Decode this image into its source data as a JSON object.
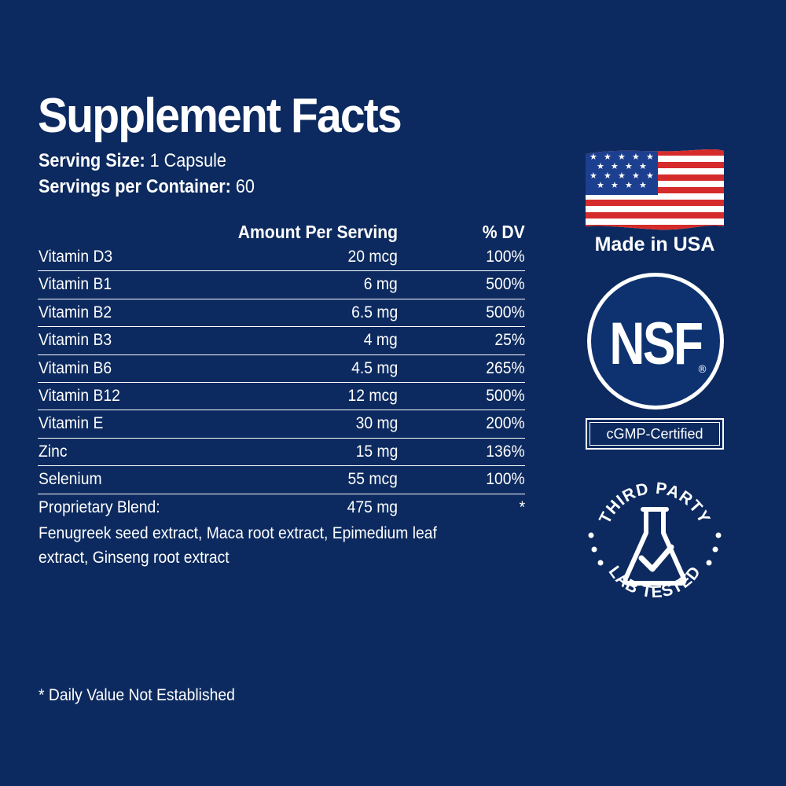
{
  "title": "Supplement Facts",
  "serving": {
    "size_label": "Serving Size:",
    "size_value": " 1 Capsule",
    "count_label": "Servings per Container:",
    "count_value": " 60"
  },
  "table": {
    "headers": {
      "amount": "Amount Per Serving",
      "dv": "% DV"
    },
    "rows": [
      {
        "name": "Vitamin D3",
        "amount": "20 mcg",
        "dv": "100%"
      },
      {
        "name": "Vitamin B1",
        "amount": "6 mg",
        "dv": "500%"
      },
      {
        "name": "Vitamin B2",
        "amount": "6.5 mg",
        "dv": "500%"
      },
      {
        "name": "Vitamin B3",
        "amount": "4 mg",
        "dv": "25%"
      },
      {
        "name": "Vitamin B6",
        "amount": "4.5 mg",
        "dv": "265%"
      },
      {
        "name": "Vitamin B12",
        "amount": "12 mcg",
        "dv": "500%"
      },
      {
        "name": "Vitamin E",
        "amount": "30 mg",
        "dv": "200%"
      },
      {
        "name": "Zinc",
        "amount": "15 mg",
        "dv": "136%"
      },
      {
        "name": "Selenium",
        "amount": "55 mcg",
        "dv": "100%"
      },
      {
        "name": "Proprietary Blend:",
        "amount": "475 mg",
        "dv": "*"
      }
    ]
  },
  "blend_ingredients": "Fenugreek seed extract, Maca root extract, Epimedium leaf extract, Ginseng root extract",
  "footnote": "* Daily Value Not Established",
  "badges": {
    "made_in": "Made in USA",
    "nsf": "NSF",
    "nsf_mark": "®",
    "cgmp": "cGMP-Certified",
    "lab_top": "THIRD PARTY",
    "lab_bottom": "LAB TESTED"
  },
  "colors": {
    "background": "#0c2a5f",
    "flag_red": "#d52b2b",
    "flag_blue": "#1d3f8f",
    "nsf_blue": "#0e3270"
  },
  "icons": [
    "us-flag-icon",
    "nsf-logo-icon",
    "lab-flask-check-icon"
  ]
}
